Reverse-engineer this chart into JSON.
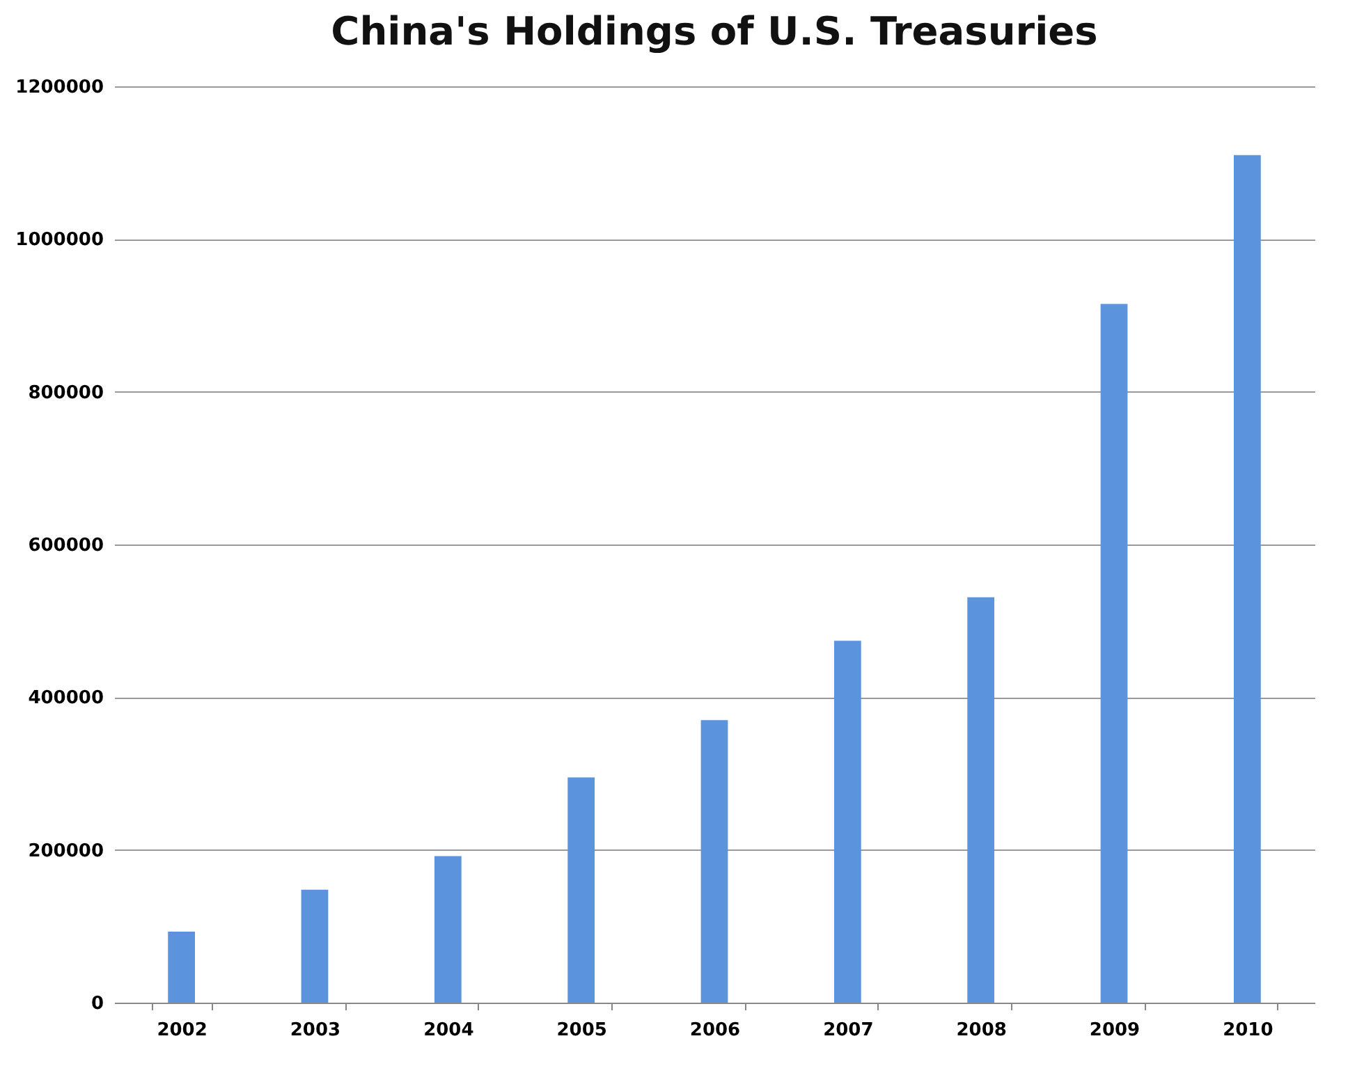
{
  "chart_data": {
    "type": "bar",
    "title": "China's Holdings of U.S. Treasuries",
    "categories": [
      "2002",
      "2003",
      "2004",
      "2005",
      "2006",
      "2007",
      "2008",
      "2009",
      "2010"
    ],
    "values": [
      93000,
      148000,
      192000,
      295000,
      370000,
      474000,
      531000,
      915000,
      1110000
    ],
    "color": "#5b93dc",
    "ylim": [
      0,
      1200000
    ],
    "yticks": [
      0,
      200000,
      400000,
      600000,
      800000,
      1000000,
      1200000
    ],
    "grid": "y"
  }
}
